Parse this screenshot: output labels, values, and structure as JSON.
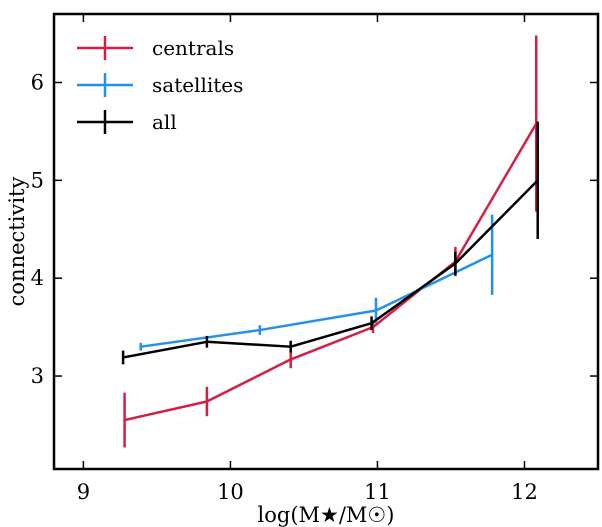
{
  "chart_data": {
    "type": "line",
    "xlabel": "log(M★/M☉)",
    "ylabel": "connectivity",
    "xlim": [
      8.8,
      12.5
    ],
    "ylim": [
      2.05,
      6.7
    ],
    "xticks": [
      9,
      10,
      11,
      12
    ],
    "yticks": [
      3,
      4,
      5,
      6
    ],
    "grid": false,
    "legend_position": "top-left",
    "series": [
      {
        "name": "centrals",
        "color": "#d61e45",
        "x": [
          9.28,
          9.84,
          10.41,
          10.97,
          11.53,
          12.08
        ],
        "y": [
          2.55,
          2.74,
          3.17,
          3.5,
          4.17,
          5.58
        ],
        "yerr": [
          0.28,
          0.15,
          0.09,
          0.06,
          0.15,
          0.9
        ]
      },
      {
        "name": "satellites",
        "color": "#2390f0",
        "x": [
          9.39,
          10.2,
          10.99,
          11.78
        ],
        "y": [
          3.3,
          3.47,
          3.67,
          4.24
        ],
        "yerr": [
          0.04,
          0.05,
          0.13,
          0.41
        ]
      },
      {
        "name": "all",
        "color": "#000000",
        "x": [
          9.27,
          9.84,
          10.41,
          10.96,
          11.53,
          12.09
        ],
        "y": [
          3.19,
          3.35,
          3.3,
          3.54,
          4.15,
          5.0
        ],
        "yerr": [
          0.07,
          0.06,
          0.06,
          0.07,
          0.12,
          0.6
        ]
      }
    ]
  }
}
